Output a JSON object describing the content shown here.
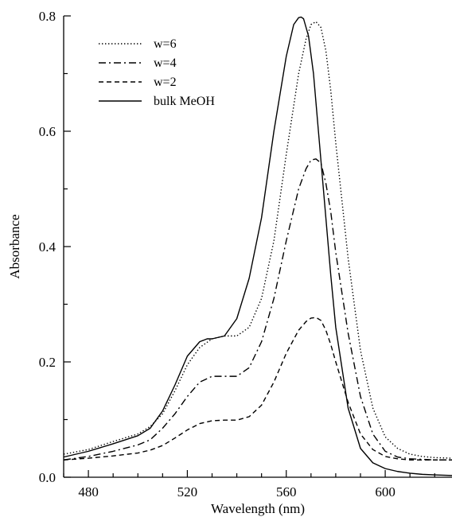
{
  "chart_data": {
    "type": "line",
    "xlabel": "Wavelength (nm)",
    "ylabel": "Absorbance",
    "xlim": [
      470,
      627
    ],
    "ylim": [
      0,
      0.8
    ],
    "x_ticks": [
      480,
      520,
      560,
      600
    ],
    "y_ticks": [
      0.0,
      0.2,
      0.4,
      0.6,
      0.8
    ],
    "x_minor_step": 10,
    "y_minor_step": 0.1,
    "x_tick_labels": [
      "480",
      "520",
      "560",
      "600"
    ],
    "y_tick_labels": [
      "0.0",
      "0.2",
      "0.4",
      "0.6",
      "0.8"
    ],
    "grid": false,
    "legend_position": "top-left",
    "series": [
      {
        "name": "w=6",
        "dash": "dotted",
        "x": [
          470,
          480,
          490,
          500,
          505,
          510,
          515,
          520,
          525,
          530,
          535,
          540,
          545,
          550,
          555,
          560,
          565,
          568,
          570,
          572,
          574,
          576,
          578,
          580,
          585,
          590,
          595,
          600,
          605,
          610,
          615,
          620,
          627
        ],
        "y": [
          0.04,
          0.048,
          0.062,
          0.075,
          0.088,
          0.11,
          0.15,
          0.195,
          0.225,
          0.24,
          0.245,
          0.245,
          0.26,
          0.31,
          0.41,
          0.56,
          0.7,
          0.76,
          0.785,
          0.79,
          0.78,
          0.74,
          0.67,
          0.58,
          0.38,
          0.22,
          0.12,
          0.07,
          0.05,
          0.04,
          0.036,
          0.034,
          0.033
        ]
      },
      {
        "name": "w=4",
        "dash": "dash-dot",
        "x": [
          470,
          480,
          490,
          500,
          505,
          510,
          515,
          520,
          525,
          530,
          535,
          540,
          545,
          550,
          555,
          560,
          565,
          568,
          570,
          572,
          574,
          576,
          578,
          580,
          585,
          590,
          595,
          600,
          605,
          610,
          615,
          620,
          627
        ],
        "y": [
          0.03,
          0.036,
          0.045,
          0.056,
          0.065,
          0.085,
          0.11,
          0.14,
          0.165,
          0.175,
          0.175,
          0.175,
          0.19,
          0.235,
          0.31,
          0.41,
          0.5,
          0.535,
          0.55,
          0.552,
          0.545,
          0.51,
          0.46,
          0.39,
          0.25,
          0.14,
          0.075,
          0.045,
          0.035,
          0.032,
          0.031,
          0.03,
          0.03
        ]
      },
      {
        "name": "w=2",
        "dash": "dashed",
        "x": [
          470,
          480,
          490,
          500,
          505,
          510,
          515,
          520,
          525,
          530,
          535,
          540,
          545,
          550,
          555,
          560,
          565,
          568,
          570,
          572,
          574,
          576,
          578,
          580,
          585,
          590,
          595,
          600,
          605,
          610,
          615,
          620,
          627
        ],
        "y": [
          0.03,
          0.033,
          0.037,
          0.042,
          0.047,
          0.055,
          0.068,
          0.082,
          0.093,
          0.098,
          0.099,
          0.099,
          0.105,
          0.125,
          0.165,
          0.215,
          0.255,
          0.27,
          0.276,
          0.277,
          0.272,
          0.255,
          0.23,
          0.2,
          0.13,
          0.075,
          0.048,
          0.036,
          0.032,
          0.03,
          0.03,
          0.03,
          0.03
        ]
      },
      {
        "name": "bulk MeOH",
        "dash": "solid",
        "x": [
          470,
          480,
          490,
          500,
          505,
          510,
          515,
          520,
          525,
          528,
          530,
          535,
          540,
          545,
          550,
          555,
          560,
          563,
          565,
          566,
          567,
          569,
          571,
          573,
          575,
          578,
          580,
          585,
          590,
          595,
          600,
          605,
          610,
          615,
          620,
          627
        ],
        "y": [
          0.035,
          0.045,
          0.058,
          0.072,
          0.085,
          0.115,
          0.16,
          0.21,
          0.235,
          0.24,
          0.24,
          0.245,
          0.275,
          0.345,
          0.45,
          0.6,
          0.73,
          0.785,
          0.797,
          0.798,
          0.795,
          0.765,
          0.7,
          0.6,
          0.5,
          0.35,
          0.26,
          0.12,
          0.05,
          0.025,
          0.015,
          0.01,
          0.007,
          0.005,
          0.004,
          0.003
        ]
      }
    ]
  }
}
